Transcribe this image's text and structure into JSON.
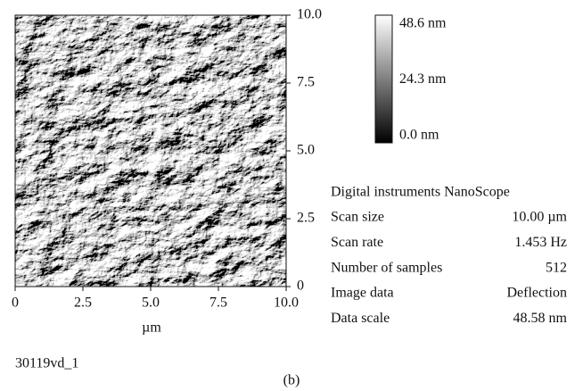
{
  "image": {
    "y_axis": {
      "ticks": [
        {
          "value": 0,
          "label": "0"
        },
        {
          "value": 2.5,
          "label": "2.5"
        },
        {
          "value": 5,
          "label": "5.0"
        },
        {
          "value": 7.5,
          "label": "7.5"
        },
        {
          "value": 10,
          "label": "10.0"
        }
      ]
    },
    "x_axis": {
      "label": "µm",
      "ticks": [
        {
          "value": 0,
          "label": "0"
        },
        {
          "value": 2.5,
          "label": "2.5"
        },
        {
          "value": 5,
          "label": "5.0"
        },
        {
          "value": 7.5,
          "label": "7.5"
        },
        {
          "value": 10,
          "label": "10.0"
        }
      ]
    },
    "filename": "30119vd_1"
  },
  "colorbar": {
    "ticks": [
      {
        "value": 48.6,
        "label": "48.6 nm"
      },
      {
        "value": 24.3,
        "label": "24.3 nm"
      },
      {
        "value": 0,
        "label": "0.0 nm"
      }
    ]
  },
  "info": {
    "title": "Digital instruments NanoScope",
    "rows": [
      [
        "Scan size",
        "10.00 µm"
      ],
      [
        "Scan rate",
        "1.453 Hz"
      ],
      [
        "Number of samples",
        "512"
      ],
      [
        "Image data",
        "Deflection"
      ],
      [
        "Data scale",
        "48.58 nm"
      ]
    ]
  },
  "caption": "(b)"
}
